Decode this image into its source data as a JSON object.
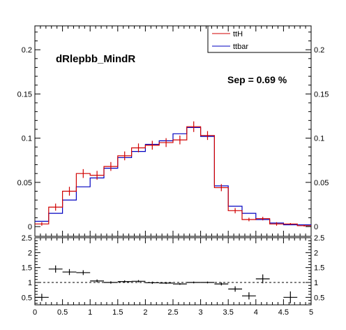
{
  "chart_data": [
    {
      "type": "histogram",
      "title": "dRlepbb_MindR",
      "annotation": "Sep = 0.69 %",
      "xlim": [
        0,
        5
      ],
      "ylim": [
        -0.011,
        0.227
      ],
      "ytick_labels": [
        "0",
        "0.05",
        "0.1",
        "0.15",
        "0.2"
      ],
      "ytick_values": [
        0,
        0.05,
        0.1,
        0.15,
        0.2
      ],
      "bin_edges": [
        0,
        0.25,
        0.5,
        0.75,
        1.0,
        1.25,
        1.5,
        1.75,
        2.0,
        2.25,
        2.5,
        2.75,
        3.0,
        3.25,
        3.5,
        3.75,
        4.0,
        4.25,
        4.5,
        4.75,
        5.0
      ],
      "legend_position": "top-right",
      "series": [
        {
          "name": "ttH",
          "color": "#d00000",
          "values": [
            0.003,
            0.022,
            0.04,
            0.06,
            0.058,
            0.068,
            0.08,
            0.089,
            0.092,
            0.095,
            0.098,
            0.113,
            0.103,
            0.044,
            0.018,
            0.008,
            0.009,
            0.003,
            0.003,
            0.001
          ],
          "errors": [
            0.002,
            0.004,
            0.005,
            0.005,
            0.005,
            0.005,
            0.005,
            0.005,
            0.005,
            0.005,
            0.005,
            0.006,
            0.005,
            0.004,
            0.003,
            0.002,
            0.002,
            0.002,
            0.001,
            0.001
          ]
        },
        {
          "name": "ttbar",
          "color": "#0000c0",
          "values": [
            0.006,
            0.015,
            0.03,
            0.045,
            0.055,
            0.066,
            0.078,
            0.085,
            0.093,
            0.097,
            0.105,
            0.112,
            0.102,
            0.046,
            0.023,
            0.015,
            0.008,
            0.004,
            0.002,
            0.002
          ]
        }
      ]
    },
    {
      "type": "ratio",
      "xlim": [
        0,
        5
      ],
      "ylim": [
        0.25,
        2.5
      ],
      "xtick_labels": [
        "0",
        "0.5",
        "1",
        "1.5",
        "2",
        "2.5",
        "3",
        "3.5",
        "4",
        "4.5",
        "5"
      ],
      "xtick_values": [
        0,
        0.5,
        1,
        1.5,
        2,
        2.5,
        3,
        3.5,
        4,
        4.5,
        5
      ],
      "ytick_labels": [
        "0.5",
        "1",
        "1.5",
        "2",
        "2.5"
      ],
      "ytick_values": [
        0.5,
        1,
        1.5,
        2,
        2.5
      ],
      "reference_line": 1,
      "bin_edges": [
        0,
        0.25,
        0.5,
        0.75,
        1.0,
        1.25,
        1.5,
        1.75,
        2.0,
        2.25,
        2.5,
        2.75,
        3.0,
        3.25,
        3.5,
        3.75,
        4.0,
        4.25,
        4.5,
        4.75,
        5.0
      ],
      "values": [
        0.5,
        1.45,
        1.35,
        1.33,
        1.05,
        1.0,
        1.03,
        1.04,
        0.99,
        0.98,
        0.95,
        1.0,
        1.0,
        0.95,
        0.78,
        0.55,
        1.12,
        null,
        0.5,
        null
      ],
      "errors": [
        0.12,
        0.12,
        0.1,
        0.08,
        0.05,
        0.04,
        0.04,
        0.04,
        0.04,
        0.03,
        0.03,
        0.03,
        0.03,
        0.05,
        0.09,
        0.12,
        0.15,
        null,
        0.2,
        null
      ]
    }
  ],
  "legend": {
    "entries": [
      {
        "label": "ttH",
        "color": "#d00000"
      },
      {
        "label": "ttbar",
        "color": "#0000c0"
      }
    ]
  }
}
